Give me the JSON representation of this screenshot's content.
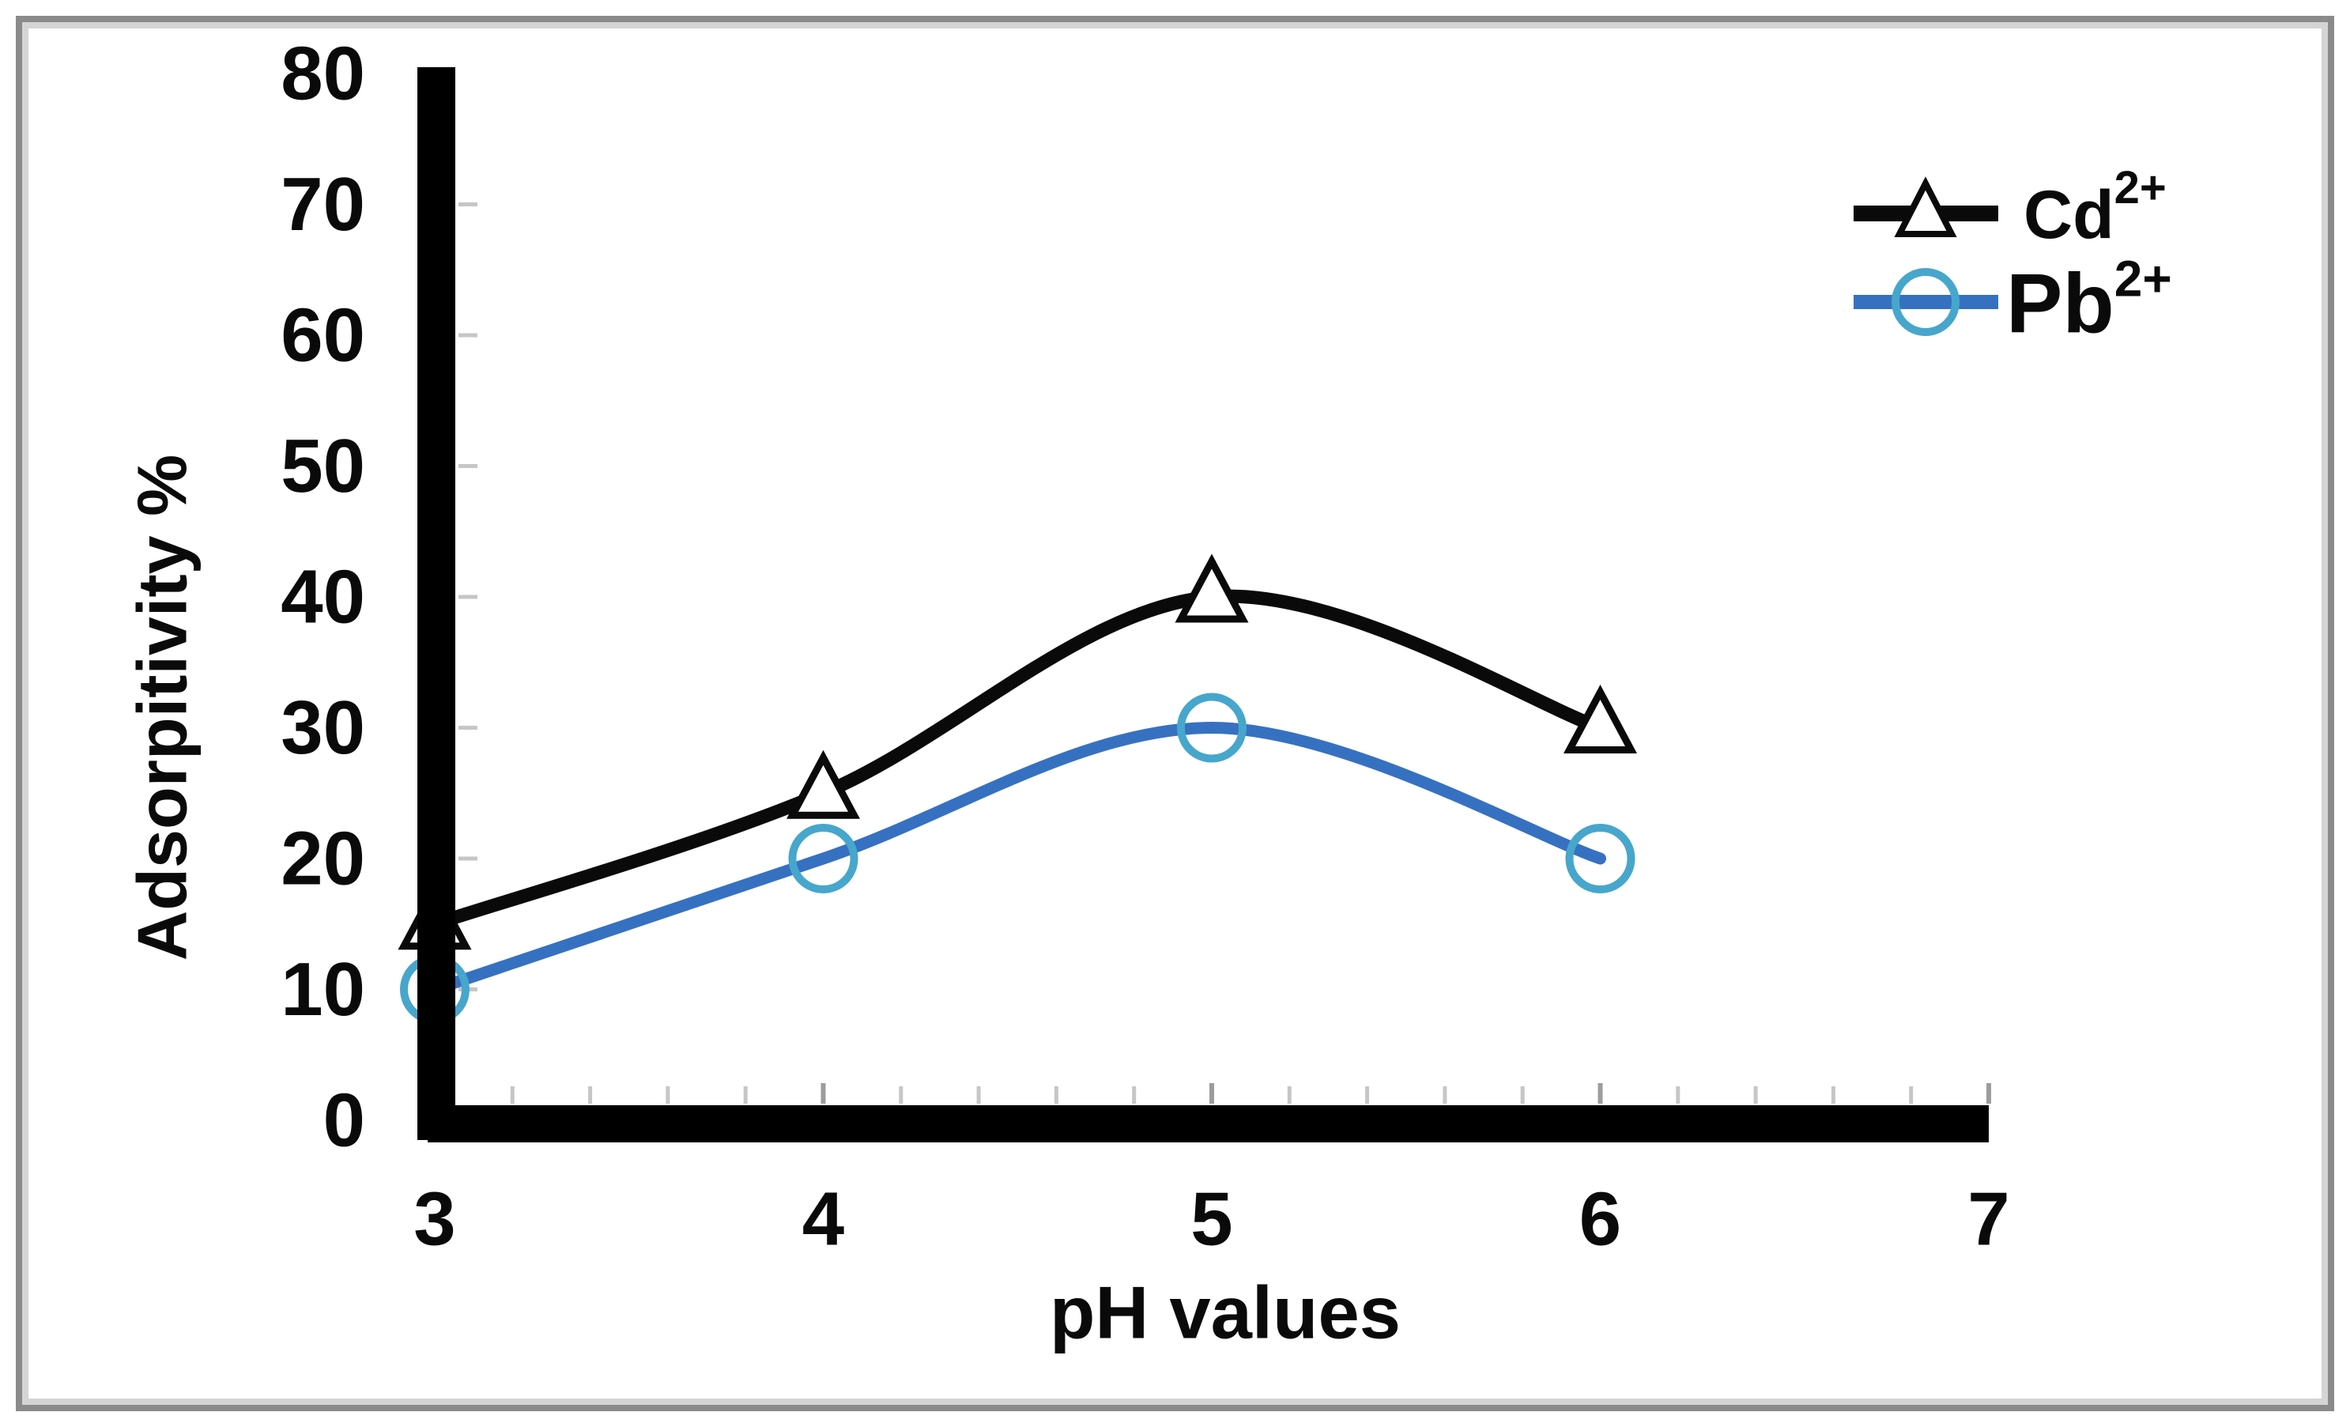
{
  "figure": {
    "background": "#ffffff",
    "frame_outer_color": "#8a8a8a",
    "frame_inner_color": "#d4d4d4",
    "axis_color": "#000000",
    "minor_tick_color": "#c6c6c6",
    "major_tick_color": "#9c9c9c"
  },
  "chart_data": {
    "type": "line",
    "title": "",
    "xlabel": "pH values",
    "ylabel": "Adsorpitivity %",
    "x": [
      3,
      4,
      5,
      6
    ],
    "xticks": [
      "3",
      "4",
      "5",
      "6",
      "7"
    ],
    "yticks": [
      "0",
      "10",
      "20",
      "30",
      "40",
      "50",
      "60",
      "70",
      "80"
    ],
    "ytick_values": [
      0,
      10,
      20,
      30,
      40,
      50,
      60,
      70,
      80
    ],
    "xtick_values": [
      3,
      4,
      5,
      6,
      7
    ],
    "xlim": [
      3,
      7
    ],
    "ylim": [
      0,
      80
    ],
    "grid": false,
    "curve": "smooth",
    "legend_position": "top-right",
    "series": [
      {
        "name": "Cd2+",
        "label_base": "Cd",
        "label_sup": "2+",
        "marker": "triangle-open",
        "marker_fill": "#ffffff",
        "color": "#0a0a0a",
        "marker_color": "#0a0a0a",
        "values": [
          15,
          25,
          40,
          30
        ]
      },
      {
        "name": "Pb2+",
        "label_base": "Pb",
        "label_sup": "2+",
        "marker": "circle-open",
        "marker_fill": "none",
        "color": "#3671c1",
        "marker_color": "#47a6cc",
        "values": [
          10,
          20,
          30,
          20
        ]
      }
    ]
  }
}
